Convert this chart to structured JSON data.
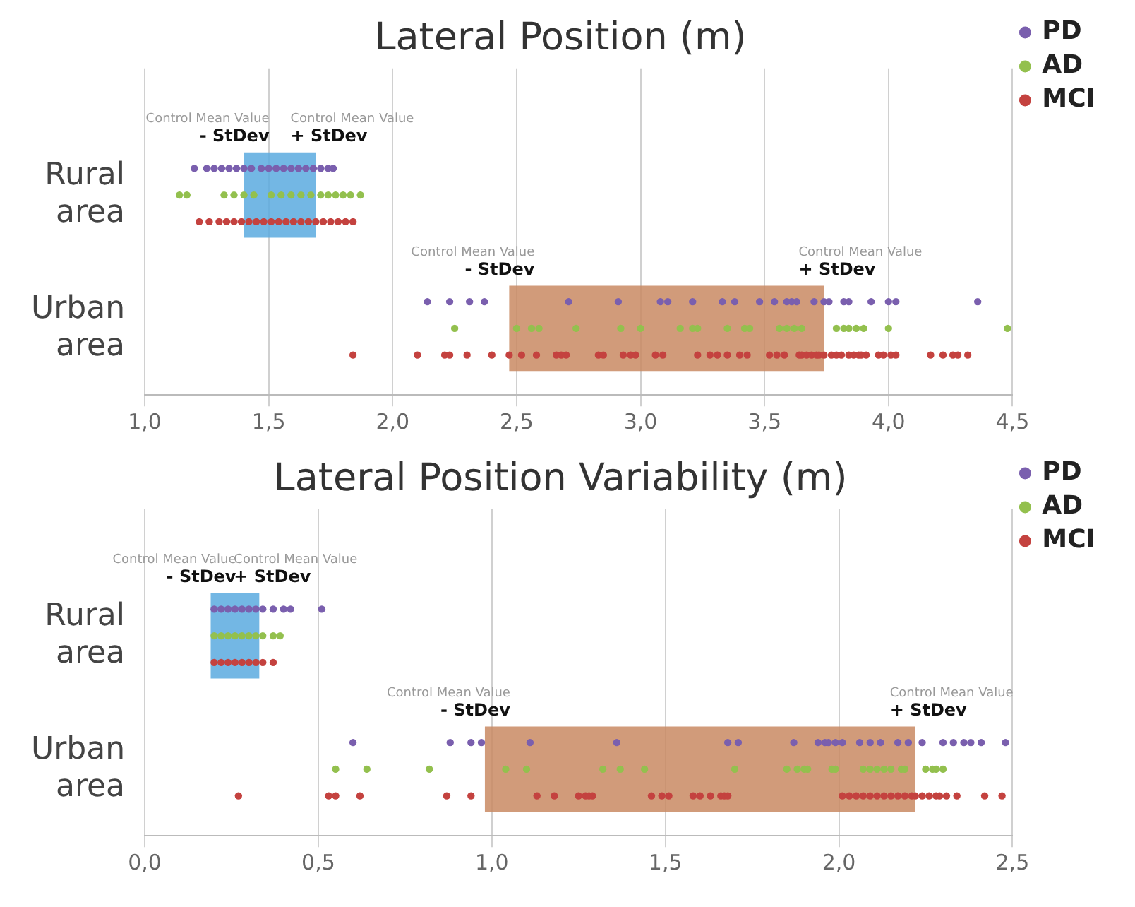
{
  "chart_data": [
    {
      "type": "scatter",
      "orientation": "horizontal",
      "title": "Lateral Position (m)",
      "categories": [
        "Rural area",
        "Urban area"
      ],
      "xlim": [
        1,
        4.5
      ],
      "xticks": [
        {
          "value": 1,
          "label": "1,0"
        },
        {
          "value": 1.5,
          "label": "1,5"
        },
        {
          "value": 2,
          "label": "2,0"
        },
        {
          "value": 2.5,
          "label": "2,5"
        },
        {
          "value": 3,
          "label": "3,0"
        },
        {
          "value": 3.5,
          "label": "3,5"
        },
        {
          "value": 4,
          "label": "4,0"
        },
        {
          "value": 4.5,
          "label": "4,5"
        }
      ],
      "grid": "x",
      "legend": "top right",
      "marker": "circle",
      "bands": [
        {
          "axis": "x",
          "from": 1.4,
          "to": 1.69,
          "color": "#5aaadf"
        },
        {
          "axis": "x",
          "from": 2.47,
          "to": 3.74,
          "color": "#c98a63"
        }
      ],
      "annotations": [
        "Control Mean Value",
        "- StDev",
        "Control Mean Value",
        "+ StDev",
        "Control Mean Value",
        "- StDev",
        "Control Mean Value",
        "+ StDev"
      ],
      "series": [
        {
          "name": "PD",
          "color": "#7a5fae",
          "x": [
            "Rural area",
            "Rural area",
            "Rural area",
            "Rural area",
            "Rural area",
            "Rural area",
            "Rural area",
            "Rural area",
            "Rural area",
            "Rural area",
            "Rural area",
            "Rural area",
            "Rural area",
            "Rural area",
            "Rural area",
            "Rural area",
            "Rural area",
            "Rural area",
            "Rural area",
            "Urban area",
            "Urban area",
            "Urban area",
            "Urban area",
            "Urban area",
            "Urban area",
            "Urban area",
            "Urban area",
            "Urban area",
            "Urban area",
            "Urban area",
            "Urban area",
            "Urban area",
            "Urban area",
            "Urban area",
            "Urban area",
            "Urban area",
            "Urban area",
            "Urban area",
            "Urban area",
            "Urban area",
            "Urban area",
            "Urban area",
            "Urban area",
            "Urban area"
          ],
          "values": [
            1.2,
            1.25,
            1.28,
            1.31,
            1.34,
            1.37,
            1.4,
            1.43,
            1.47,
            1.5,
            1.53,
            1.56,
            1.59,
            1.62,
            1.65,
            1.68,
            1.71,
            1.74,
            1.76,
            2.14,
            2.23,
            2.31,
            2.37,
            2.71,
            2.91,
            3.08,
            3.11,
            3.21,
            3.33,
            3.38,
            3.48,
            3.54,
            3.59,
            3.61,
            3.63,
            3.7,
            3.74,
            3.76,
            3.82,
            3.84,
            3.93,
            4.0,
            4.03,
            4.36
          ]
        },
        {
          "name": "AD",
          "color": "#93c04e",
          "x": [
            "Rural area",
            "Rural area",
            "Rural area",
            "Rural area",
            "Rural area",
            "Rural area",
            "Rural area",
            "Rural area",
            "Rural area",
            "Rural area",
            "Rural area",
            "Rural area",
            "Rural area",
            "Rural area",
            "Rural area",
            "Rural area",
            "Rural area",
            "Urban area",
            "Urban area",
            "Urban area",
            "Urban area",
            "Urban area",
            "Urban area",
            "Urban area",
            "Urban area",
            "Urban area",
            "Urban area",
            "Urban area",
            "Urban area",
            "Urban area",
            "Urban area",
            "Urban area",
            "Urban area",
            "Urban area",
            "Urban area",
            "Urban area",
            "Urban area",
            "Urban area",
            "Urban area",
            "Urban area",
            "Urban area"
          ],
          "values": [
            1.14,
            1.17,
            1.32,
            1.36,
            1.4,
            1.44,
            1.51,
            1.55,
            1.59,
            1.63,
            1.67,
            1.71,
            1.74,
            1.77,
            1.8,
            1.83,
            1.87,
            2.25,
            2.5,
            2.56,
            2.59,
            2.74,
            2.92,
            3.0,
            3.16,
            3.21,
            3.23,
            3.35,
            3.42,
            3.44,
            3.56,
            3.59,
            3.62,
            3.65,
            3.79,
            3.82,
            3.84,
            3.87,
            3.9,
            4.0,
            4.48
          ]
        },
        {
          "name": "MCI",
          "color": "#c4423f",
          "x": [
            "Rural area",
            "Rural area",
            "Rural area",
            "Rural area",
            "Rural area",
            "Rural area",
            "Rural area",
            "Rural area",
            "Rural area",
            "Rural area",
            "Rural area",
            "Rural area",
            "Rural area",
            "Rural area",
            "Rural area",
            "Rural area",
            "Rural area",
            "Rural area",
            "Rural area",
            "Rural area",
            "Rural area",
            "Urban area",
            "Urban area",
            "Urban area",
            "Urban area",
            "Urban area",
            "Urban area",
            "Urban area",
            "Urban area",
            "Urban area",
            "Urban area",
            "Urban area",
            "Urban area",
            "Urban area",
            "Urban area",
            "Urban area",
            "Urban area",
            "Urban area",
            "Urban area",
            "Urban area",
            "Urban area",
            "Urban area",
            "Urban area",
            "Urban area",
            "Urban area",
            "Urban area",
            "Urban area",
            "Urban area",
            "Urban area",
            "Urban area",
            "Urban area",
            "Urban area",
            "Urban area",
            "Urban area",
            "Urban area",
            "Urban area",
            "Urban area",
            "Urban area",
            "Urban area",
            "Urban area",
            "Urban area",
            "Urban area",
            "Urban area",
            "Urban area",
            "Urban area",
            "Urban area",
            "Urban area",
            "Urban area",
            "Urban area",
            "Urban area",
            "Urban area",
            "Urban area",
            "Urban area"
          ],
          "values": [
            1.22,
            1.26,
            1.3,
            1.33,
            1.36,
            1.39,
            1.42,
            1.45,
            1.48,
            1.51,
            1.54,
            1.57,
            1.6,
            1.63,
            1.66,
            1.69,
            1.72,
            1.75,
            1.78,
            1.81,
            1.84,
            1.84,
            2.1,
            2.21,
            2.23,
            2.3,
            2.4,
            2.47,
            2.52,
            2.58,
            2.66,
            2.68,
            2.7,
            2.83,
            2.85,
            2.93,
            2.96,
            2.98,
            3.06,
            3.09,
            3.23,
            3.28,
            3.31,
            3.35,
            3.4,
            3.43,
            3.52,
            3.55,
            3.58,
            3.64,
            3.65,
            3.67,
            3.69,
            3.71,
            3.72,
            3.74,
            3.77,
            3.79,
            3.81,
            3.84,
            3.86,
            3.88,
            3.89,
            3.91,
            3.96,
            3.98,
            4.01,
            4.03,
            4.17,
            4.22,
            4.26,
            4.28,
            4.32
          ]
        }
      ]
    },
    {
      "type": "scatter",
      "orientation": "horizontal",
      "title": "Lateral Position Variability (m)",
      "categories": [
        "Rural area",
        "Urban area"
      ],
      "xlim": [
        0,
        2.5
      ],
      "xticks": [
        {
          "value": 0,
          "label": "0,0"
        },
        {
          "value": 0.5,
          "label": "0,5"
        },
        {
          "value": 1,
          "label": "1,0"
        },
        {
          "value": 1.5,
          "label": "1,5"
        },
        {
          "value": 2,
          "label": "2,0"
        },
        {
          "value": 2.5,
          "label": "2,5"
        }
      ],
      "grid": "x",
      "legend": "top right",
      "marker": "circle",
      "bands": [
        {
          "axis": "x",
          "from": 0.19,
          "to": 0.33,
          "color": "#5aaadf"
        },
        {
          "axis": "x",
          "from": 0.98,
          "to": 2.22,
          "color": "#c98a63"
        }
      ],
      "annotations": [
        "Control Mean Value",
        "- StDev",
        "Control Mean Value",
        "+ StDev",
        "Control Mean Value",
        "- StDev",
        "Control Mean Value",
        "+ StDev"
      ],
      "series": [
        {
          "name": "PD",
          "color": "#7a5fae",
          "x": [
            "Rural area",
            "Rural area",
            "Rural area",
            "Rural area",
            "Rural area",
            "Rural area",
            "Rural area",
            "Rural area",
            "Rural area",
            "Rural area",
            "Rural area",
            "Rural area",
            "Urban area",
            "Urban area",
            "Urban area",
            "Urban area",
            "Urban area",
            "Urban area",
            "Urban area",
            "Urban area",
            "Urban area",
            "Urban area",
            "Urban area",
            "Urban area",
            "Urban area",
            "Urban area",
            "Urban area",
            "Urban area",
            "Urban area",
            "Urban area",
            "Urban area",
            "Urban area",
            "Urban area",
            "Urban area",
            "Urban area",
            "Urban area",
            "Urban area",
            "Urban area"
          ],
          "values": [
            0.2,
            0.22,
            0.24,
            0.26,
            0.28,
            0.3,
            0.32,
            0.34,
            0.37,
            0.4,
            0.42,
            0.51,
            0.6,
            0.88,
            0.94,
            0.97,
            1.11,
            1.36,
            1.68,
            1.71,
            1.87,
            1.94,
            1.96,
            1.97,
            1.99,
            2.01,
            2.06,
            2.09,
            2.12,
            2.17,
            2.2,
            2.24,
            2.3,
            2.33,
            2.36,
            2.38,
            2.41,
            2.48
          ]
        },
        {
          "name": "AD",
          "color": "#93c04e",
          "x": [
            "Rural area",
            "Rural area",
            "Rural area",
            "Rural area",
            "Rural area",
            "Rural area",
            "Rural area",
            "Rural area",
            "Rural area",
            "Rural area",
            "Urban area",
            "Urban area",
            "Urban area",
            "Urban area",
            "Urban area",
            "Urban area",
            "Urban area",
            "Urban area",
            "Urban area",
            "Urban area",
            "Urban area",
            "Urban area",
            "Urban area",
            "Urban area",
            "Urban area",
            "Urban area",
            "Urban area",
            "Urban area",
            "Urban area",
            "Urban area",
            "Urban area",
            "Urban area",
            "Urban area",
            "Urban area",
            "Urban area",
            "Urban area"
          ],
          "values": [
            0.2,
            0.22,
            0.24,
            0.26,
            0.28,
            0.3,
            0.32,
            0.34,
            0.37,
            0.39,
            0.55,
            0.64,
            0.82,
            1.04,
            1.1,
            1.32,
            1.37,
            1.44,
            1.7,
            1.85,
            1.88,
            1.9,
            1.91,
            1.98,
            1.99,
            2.07,
            2.09,
            2.11,
            2.13,
            2.15,
            2.18,
            2.19,
            2.25,
            2.27,
            2.28,
            2.3
          ]
        },
        {
          "name": "MCI",
          "color": "#c4423f",
          "x": [
            "Rural area",
            "Rural area",
            "Rural area",
            "Rural area",
            "Rural area",
            "Rural area",
            "Rural area",
            "Rural area",
            "Rural area",
            "Urban area",
            "Urban area",
            "Urban area",
            "Urban area",
            "Urban area",
            "Urban area",
            "Urban area",
            "Urban area",
            "Urban area",
            "Urban area",
            "Urban area",
            "Urban area",
            "Urban area",
            "Urban area",
            "Urban area",
            "Urban area",
            "Urban area",
            "Urban area",
            "Urban area",
            "Urban area",
            "Urban area",
            "Urban area",
            "Urban area",
            "Urban area",
            "Urban area",
            "Urban area",
            "Urban area",
            "Urban area",
            "Urban area",
            "Urban area",
            "Urban area",
            "Urban area",
            "Urban area",
            "Urban area",
            "Urban area",
            "Urban area",
            "Urban area",
            "Urban area",
            "Urban area",
            "Urban area",
            "Urban area"
          ],
          "values": [
            0.2,
            0.22,
            0.24,
            0.26,
            0.28,
            0.3,
            0.32,
            0.34,
            0.37,
            0.27,
            0.53,
            0.55,
            0.62,
            0.87,
            0.94,
            1.13,
            1.18,
            1.25,
            1.27,
            1.28,
            1.29,
            1.46,
            1.49,
            1.51,
            1.58,
            1.6,
            1.63,
            1.66,
            1.67,
            1.68,
            2.01,
            2.03,
            2.05,
            2.07,
            2.09,
            2.11,
            2.13,
            2.15,
            2.17,
            2.19,
            2.21,
            2.22,
            2.24,
            2.26,
            2.28,
            2.29,
            2.31,
            2.34,
            2.42,
            2.47
          ]
        }
      ]
    }
  ]
}
